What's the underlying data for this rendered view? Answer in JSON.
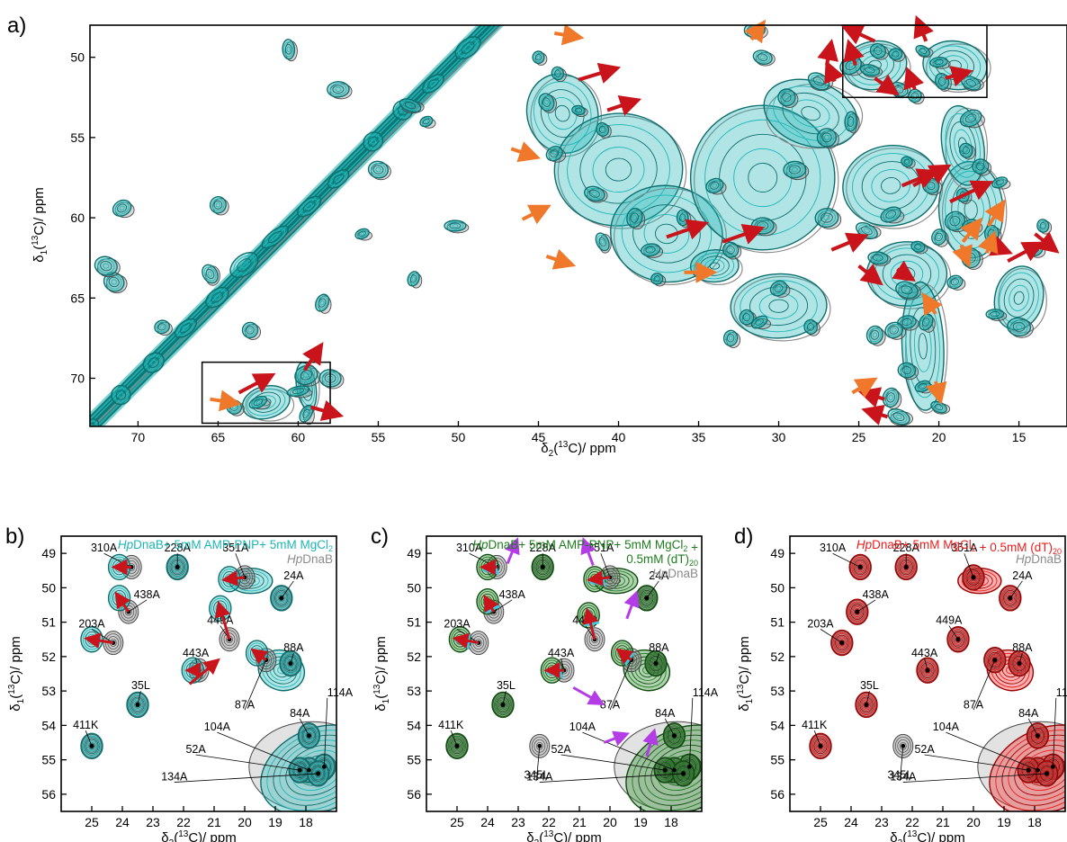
{
  "colors": {
    "teal": "#1fb5b5",
    "teal_dark": "#0d6e6e",
    "gray": "#8c8c8c",
    "gray_dark": "#4a4a4a",
    "green": "#1e7d1e",
    "red": "#ee1c1c",
    "arrow_red": "#c8141a",
    "arrow_orange": "#f0782a",
    "arrow_cyan": "#3cc8e6",
    "arrow_magenta": "#b43ce6"
  },
  "chart_data": [
    {
      "panel": "a)",
      "type": "heatmap",
      "xlabel": "δ2(13C)/ ppm",
      "ylabel": "δ1(13C)/ ppm",
      "xlim": [
        73,
        12
      ],
      "ylim": [
        48,
        73
      ],
      "xticks": [
        70,
        65,
        60,
        55,
        50,
        45,
        40,
        35,
        30,
        25,
        20,
        15
      ],
      "yticks": [
        50,
        55,
        60,
        65,
        70
      ],
      "series": [
        {
          "color": "gray"
        },
        {
          "color": "teal"
        }
      ],
      "diagonal": [
        [
          73,
          73
        ],
        [
          47.5,
          47.5
        ]
      ],
      "regions": [
        [
          43.5,
          53.5,
          2.2,
          2.5
        ],
        [
          40,
          57,
          4,
          3.5
        ],
        [
          37,
          61,
          3.5,
          3
        ],
        [
          31,
          57.5,
          4.5,
          4.5
        ],
        [
          28,
          53.5,
          3,
          2
        ],
        [
          23,
          58,
          3,
          2.5
        ],
        [
          18,
          59.5,
          2,
          3
        ],
        [
          22,
          63.5,
          2.5,
          2
        ],
        [
          21,
          68,
          1.3,
          4
        ],
        [
          15,
          65,
          1.5,
          2
        ],
        [
          30,
          65.5,
          3,
          2
        ],
        [
          34,
          63,
          1.5,
          1
        ],
        [
          18.5,
          55.5,
          1.3,
          2.5
        ],
        [
          24,
          50.5,
          2,
          1.5
        ],
        [
          19,
          50.5,
          2,
          1.5
        ],
        [
          62,
          71.5,
          1.5,
          1
        ],
        [
          59.5,
          70.5,
          0.6,
          1.5
        ]
      ],
      "peaks": [
        [
          71.5,
          64
        ],
        [
          72,
          63
        ],
        [
          71,
          59.4
        ],
        [
          68.5,
          66.8
        ],
        [
          65,
          59.2
        ],
        [
          65.5,
          63.5
        ],
        [
          63,
          67
        ],
        [
          60.6,
          49.5
        ],
        [
          57.5,
          52
        ],
        [
          58.5,
          65.3
        ],
        [
          56,
          61
        ],
        [
          55,
          57
        ],
        [
          53,
          53
        ],
        [
          52,
          54
        ],
        [
          52.8,
          63.8
        ],
        [
          50.2,
          60.5
        ],
        [
          45,
          50
        ],
        [
          43.8,
          51
        ],
        [
          44.5,
          52.8
        ],
        [
          42.5,
          53.3
        ],
        [
          41,
          54.5
        ],
        [
          44,
          56
        ],
        [
          41.5,
          58.5
        ],
        [
          39,
          60
        ],
        [
          38,
          62
        ],
        [
          41,
          61.5
        ],
        [
          37.6,
          63.8
        ],
        [
          36,
          60
        ],
        [
          33,
          62
        ],
        [
          34,
          58
        ],
        [
          31,
          60.5
        ],
        [
          29,
          57
        ],
        [
          27,
          60
        ],
        [
          29.5,
          52.5
        ],
        [
          27.5,
          51.5
        ],
        [
          27,
          55
        ],
        [
          25.5,
          54
        ],
        [
          31,
          50
        ],
        [
          31.5,
          48.3
        ],
        [
          25.5,
          50.5
        ],
        [
          23.8,
          49.6
        ],
        [
          24.3,
          50.8
        ],
        [
          22.7,
          49.8
        ],
        [
          21,
          49.6
        ],
        [
          20,
          50.3
        ],
        [
          19.8,
          51.5
        ],
        [
          18,
          51.6
        ],
        [
          22.5,
          52
        ],
        [
          21.5,
          52.4
        ],
        [
          18,
          53.8
        ],
        [
          18.3,
          55.8
        ],
        [
          17.4,
          56.8
        ],
        [
          22,
          56.5
        ],
        [
          20.5,
          58
        ],
        [
          18.5,
          58.6
        ],
        [
          16.2,
          57.8
        ],
        [
          19,
          60.2
        ],
        [
          18,
          60.5
        ],
        [
          16.7,
          61
        ],
        [
          20,
          61.2
        ],
        [
          24.5,
          60.8
        ],
        [
          23,
          59.8
        ],
        [
          21.3,
          61.8
        ],
        [
          18,
          62.5
        ],
        [
          19,
          64
        ],
        [
          22,
          64.5
        ],
        [
          23.8,
          62.5
        ],
        [
          20.8,
          66.5
        ],
        [
          22,
          66.5
        ],
        [
          22.8,
          67
        ],
        [
          24,
          67.3
        ],
        [
          22,
          69.5
        ],
        [
          21,
          70.5
        ],
        [
          23,
          71.2
        ],
        [
          22.5,
          72.4
        ],
        [
          20,
          71.8
        ],
        [
          14,
          62
        ],
        [
          13.5,
          60.5
        ],
        [
          15,
          66.8
        ],
        [
          16.5,
          66
        ],
        [
          28,
          66.8
        ],
        [
          32,
          66.2
        ],
        [
          33,
          67.5
        ],
        [
          31.2,
          66.5
        ],
        [
          30,
          64.4
        ],
        [
          62.5,
          71.5
        ],
        [
          64,
          71.8
        ],
        [
          59.5,
          69.8
        ],
        [
          59.5,
          72.2
        ],
        [
          58,
          70
        ],
        [
          60,
          70.8
        ]
      ],
      "boxes": [
        [
          66,
          69,
          58,
          72.8
        ],
        [
          26,
          48,
          17,
          52.5
        ]
      ]
    },
    {
      "panel": "b)",
      "type": "heatmap",
      "xlabel": "δ2(13C)/ ppm",
      "ylabel": "δ1(13C)/ ppm",
      "xlim": [
        26,
        17
      ],
      "ylim": [
        48.5,
        56.5
      ],
      "xticks": [
        25,
        24,
        23,
        22,
        21,
        20,
        19,
        18
      ],
      "yticks": [
        49,
        50,
        51,
        52,
        53,
        54,
        55,
        56
      ],
      "series": [
        {
          "name": "HpDnaB+ 5mM AMP-PNP+ 5mM MgCl2",
          "color": "teal"
        },
        {
          "name": "HpDnaB",
          "color": "gray"
        }
      ]
    },
    {
      "panel": "c)",
      "type": "heatmap",
      "xlabel": "δ2(13C)/ ppm",
      "ylabel": "δ1(13C)/ ppm",
      "xlim": [
        26,
        17
      ],
      "ylim": [
        48.5,
        56.5
      ],
      "xticks": [
        25,
        24,
        23,
        22,
        21,
        20,
        19,
        18
      ],
      "yticks": [
        49,
        50,
        51,
        52,
        53,
        54,
        55,
        56
      ],
      "series": [
        {
          "name": "HpDnaB+ 5mM AMP-PNP+ 5mM MgCl2 + 0.5mM (dT)20",
          "color": "green"
        },
        {
          "name": "HpDnaB",
          "color": "gray"
        }
      ]
    },
    {
      "panel": "d)",
      "type": "heatmap",
      "xlabel": "δ2(13C)/ ppm",
      "ylabel": "δ1(13C)/ ppm",
      "xlim": [
        26,
        17
      ],
      "ylim": [
        48.5,
        56.5
      ],
      "xticks": [
        25,
        24,
        23,
        22,
        21,
        20,
        19,
        18
      ],
      "yticks": [
        49,
        50,
        51,
        52,
        53,
        54,
        55,
        56
      ],
      "series": [
        {
          "name": "HpDnaB+ 5mM MgCl2 + 0.5mM (dT)20",
          "color": "red"
        },
        {
          "name": "HpDnaB",
          "color": "gray"
        }
      ]
    }
  ],
  "panel_labels": {
    "a": "a)",
    "b": "b)",
    "c": "c)",
    "d": "d)"
  },
  "assignments": [
    {
      "label": "310A",
      "peak": [
        23.7,
        49.4
      ]
    },
    {
      "label": "228A",
      "peak": [
        22.2,
        49.4
      ]
    },
    {
      "label": "351A",
      "peak": [
        20.0,
        49.7
      ]
    },
    {
      "label": "24A",
      "peak": [
        18.8,
        50.3
      ]
    },
    {
      "label": "438A",
      "peak": [
        23.8,
        50.7
      ]
    },
    {
      "label": "203A",
      "peak": [
        24.3,
        51.6
      ]
    },
    {
      "label": "449A",
      "peak": [
        20.5,
        51.5
      ]
    },
    {
      "label": "443A",
      "peak": [
        21.5,
        52.4
      ]
    },
    {
      "label": "88A",
      "peak": [
        18.5,
        52.2
      ]
    },
    {
      "label": "35L",
      "peak": [
        23.5,
        53.4
      ]
    },
    {
      "label": "87A",
      "peak": [
        19.3,
        52.1
      ]
    },
    {
      "label": "411K",
      "peak": [
        25.0,
        54.6
      ]
    },
    {
      "label": "84A",
      "peak": [
        17.9,
        54.3
      ]
    },
    {
      "label": "114A",
      "peak": [
        17.4,
        55.2
      ]
    },
    {
      "label": "104A",
      "peak": [
        17.9,
        55.3
      ]
    },
    {
      "label": "52A",
      "peak": [
        18.2,
        55.3
      ]
    },
    {
      "label": "134A",
      "peak": [
        17.6,
        55.4
      ]
    },
    {
      "label": "345L",
      "peak": [
        22.3,
        54.6
      ]
    }
  ]
}
